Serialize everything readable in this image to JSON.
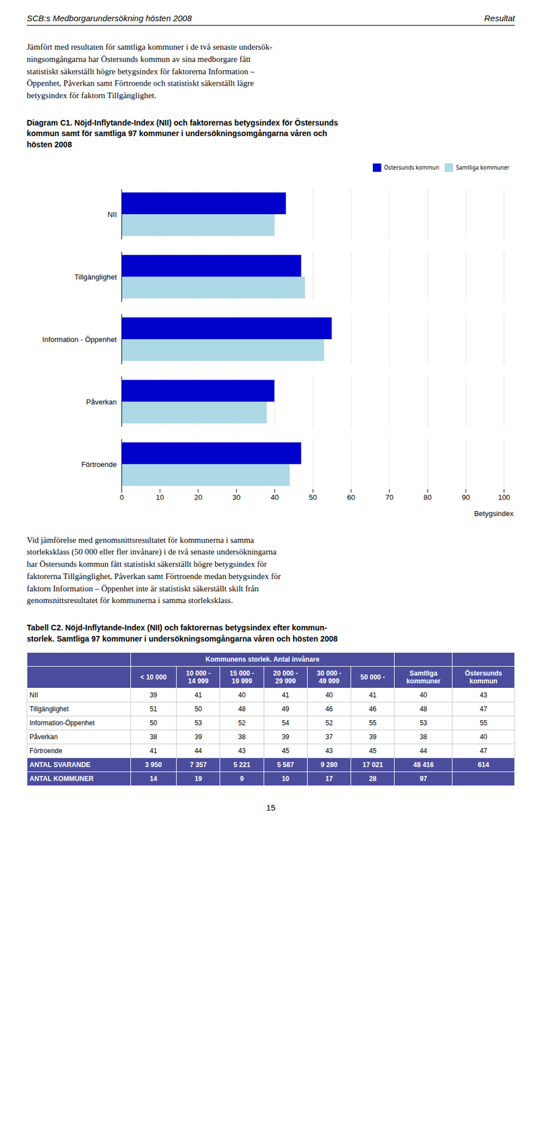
{
  "chart_data": [
    {
      "type": "bar",
      "orientation": "horizontal",
      "title": "Diagram C1. Nöjd-Inflytande-Index (NII) och faktorernas betygsindex för Östersunds\nkommun samt för samtliga 97 kommuner i undersökningsomgångarna våren och\nhösten 2008",
      "categories": [
        "NII",
        "Tillgänglighet",
        "Information - Öppenhet",
        "Påverkan",
        "Förtroende"
      ],
      "series": [
        {
          "name": "Östersunds kommun",
          "color": "#0000CC",
          "values": [
            43,
            47,
            55,
            40,
            47
          ]
        },
        {
          "name": "Samtliga kommuner",
          "color": "#ADD8E6",
          "values": [
            40,
            48,
            53,
            38,
            44
          ]
        }
      ],
      "xlim": [
        0,
        100
      ],
      "xticks": [
        0,
        10,
        20,
        30,
        40,
        50,
        60,
        70,
        80,
        90,
        100
      ],
      "xlabel": "Betygsindex",
      "grid": true,
      "legend": "upper right",
      "annotations": [
        "SCB:s Medborgarundersökning hösten 2008",
        "Resultat",
        "Jämfört med resultaten för samtliga kommuner i de två senaste undersök-\nningsomgångarna har Östersunds kommun av sina medborgare fått\nstatistiskt säkerställt högre betygsindex för faktorerna Information –\nÖppenhet, Påverkan samt Förtroende och statistiskt säkerställt lägre\nbetygsindex för faktorn Tillgänglighet.",
        "Vid jämförelse med genomsnittsresultatet för kommunerna i samma\nstorleksklass (50 000 eller fler invånare) i de två senaste undersökningarna\nhar Östersunds kommun fått statistiskt säkerställt högre betygsindex för\nfaktorerna Tillgänglighet, Påverkan samt Förtroende medan betygsindex för\nfaktorn Information – Öppenhet inte är statistiskt säkerställt skilt från\ngenomsnittsresultatet för kommunerna i samma storleksklass.",
        "15"
      ]
    },
    {
      "type": "table",
      "title": "Tabell C2. Nöjd-Inflytande-Index (NII) och faktorernas betygsindex efter kommun-\nstorlek. Samtliga 97 kommuner i undersökningsomgångarna våren och hösten 2008",
      "column_group": "Kommunens storlek. Antal invånare",
      "columns": [
        null,
        "< 10 000",
        "10 000 -\n14 999",
        "15 000 -\n19 999",
        "20 000 -\n29 999",
        "30 000 -\n49 999",
        "50 000 -",
        "Samtliga\nkommuner",
        "Östersunds\nkommun"
      ],
      "rows": [
        [
          "NII",
          "39",
          "41",
          "40",
          "41",
          "40",
          "41",
          "40",
          "43"
        ],
        [
          "Tillgänglighet",
          "51",
          "50",
          "48",
          "49",
          "46",
          "46",
          "48",
          "47"
        ],
        [
          "Information-Öppenhet",
          "50",
          "53",
          "52",
          "54",
          "52",
          "55",
          "53",
          "55"
        ],
        [
          "Påverkan",
          "38",
          "39",
          "38",
          "39",
          "37",
          "39",
          "38",
          "40"
        ],
        [
          "Förtroende",
          "41",
          "44",
          "43",
          "45",
          "43",
          "45",
          "44",
          "47"
        ],
        [
          "ANTAL SVARANDE",
          "3 950",
          "7 357",
          "5 221",
          "5 587",
          "9 280",
          "17 021",
          "48 416",
          "614"
        ],
        [
          "ANTAL KOMMUNER",
          "14",
          "19",
          "9",
          "10",
          "17",
          "28",
          "97",
          null
        ]
      ]
    }
  ]
}
